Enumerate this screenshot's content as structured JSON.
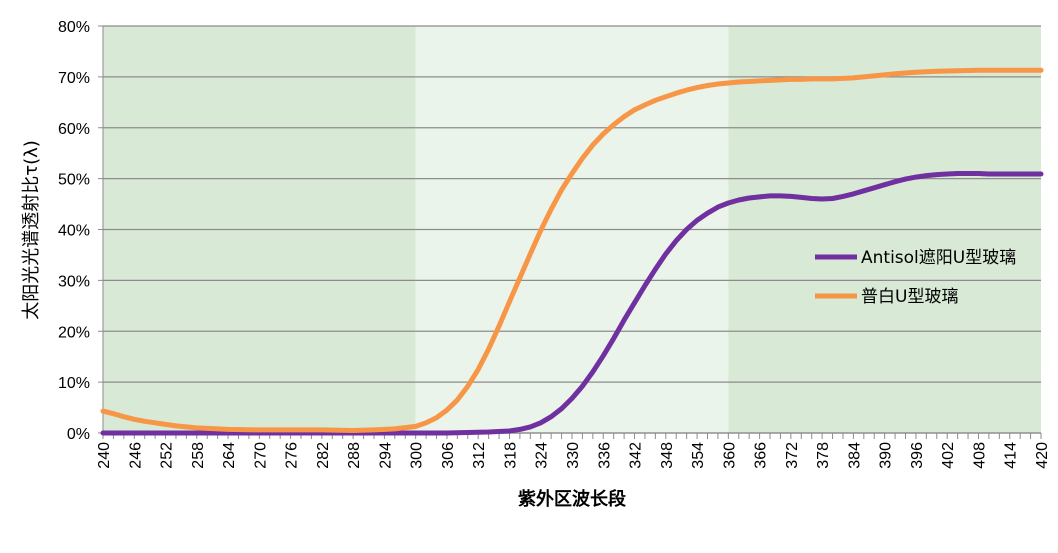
{
  "chart_data": {
    "type": "line",
    "title": "",
    "xlabel": "紫外区波长段",
    "ylabel": "太阳光光谱透射比τ(λ)",
    "xlim": [
      240,
      420
    ],
    "ylim": [
      0,
      0.8
    ],
    "x_ticks": [
      240,
      246,
      252,
      258,
      264,
      270,
      276,
      282,
      288,
      294,
      300,
      306,
      312,
      318,
      324,
      330,
      336,
      342,
      348,
      354,
      360,
      366,
      372,
      378,
      384,
      390,
      396,
      402,
      408,
      414,
      420
    ],
    "y_ticks": [
      0,
      0.1,
      0.2,
      0.3,
      0.4,
      0.5,
      0.6,
      0.7,
      0.8
    ],
    "y_tick_labels": [
      "0%",
      "10%",
      "20%",
      "30%",
      "40%",
      "50%",
      "60%",
      "70%",
      "80%"
    ],
    "grid": "horizontal",
    "legend_position": "right",
    "background_bands": [
      {
        "from": 240,
        "to": 300,
        "color": "#d8e9d6"
      },
      {
        "from": 300,
        "to": 360,
        "color": "#ebf4ea"
      },
      {
        "from": 360,
        "to": 420,
        "color": "#d8e9d6"
      }
    ],
    "series": [
      {
        "name": "Antisol遮阳U型玻璃",
        "color": "#7030a0",
        "x": [
          240,
          250,
          260,
          270,
          280,
          290,
          300,
          306,
          310,
          314,
          318,
          320,
          322,
          324,
          326,
          328,
          330,
          332,
          334,
          336,
          338,
          340,
          342,
          344,
          346,
          348,
          350,
          352,
          354,
          356,
          358,
          360,
          362,
          364,
          366,
          368,
          370,
          372,
          374,
          376,
          378,
          380,
          382,
          384,
          386,
          388,
          390,
          392,
          394,
          396,
          398,
          400,
          402,
          404,
          406,
          408,
          410,
          412,
          414,
          416,
          418,
          420
        ],
        "y": [
          0,
          0,
          0,
          0,
          0,
          0,
          0,
          0,
          0.001,
          0.002,
          0.004,
          0.007,
          0.012,
          0.02,
          0.032,
          0.048,
          0.068,
          0.092,
          0.12,
          0.152,
          0.186,
          0.222,
          0.256,
          0.29,
          0.322,
          0.352,
          0.378,
          0.4,
          0.418,
          0.432,
          0.444,
          0.452,
          0.458,
          0.462,
          0.464,
          0.466,
          0.466,
          0.465,
          0.463,
          0.461,
          0.46,
          0.461,
          0.465,
          0.47,
          0.476,
          0.482,
          0.488,
          0.494,
          0.499,
          0.503,
          0.506,
          0.508,
          0.509,
          0.51,
          0.51,
          0.51,
          0.509,
          0.509,
          0.509,
          0.509,
          0.509,
          0.509
        ]
      },
      {
        "name": "普白U型玻璃",
        "color": "#f79646",
        "x": [
          240,
          242,
          244,
          246,
          248,
          250,
          252,
          254,
          256,
          258,
          260,
          264,
          270,
          276,
          282,
          288,
          292,
          296,
          300,
          302,
          304,
          306,
          308,
          310,
          312,
          314,
          316,
          318,
          320,
          322,
          324,
          326,
          328,
          330,
          332,
          334,
          336,
          338,
          340,
          342,
          344,
          346,
          348,
          350,
          352,
          354,
          356,
          358,
          360,
          362,
          364,
          366,
          368,
          370,
          372,
          374,
          376,
          378,
          380,
          384,
          388,
          392,
          396,
          400,
          404,
          408,
          412,
          416,
          420
        ],
        "y": [
          0.043,
          0.038,
          0.032,
          0.027,
          0.023,
          0.02,
          0.017,
          0.014,
          0.012,
          0.01,
          0.009,
          0.007,
          0.006,
          0.006,
          0.006,
          0.005,
          0.006,
          0.008,
          0.013,
          0.02,
          0.03,
          0.045,
          0.065,
          0.092,
          0.125,
          0.165,
          0.21,
          0.258,
          0.305,
          0.352,
          0.398,
          0.44,
          0.478,
          0.51,
          0.54,
          0.566,
          0.588,
          0.606,
          0.622,
          0.635,
          0.645,
          0.654,
          0.661,
          0.668,
          0.674,
          0.679,
          0.683,
          0.686,
          0.688,
          0.69,
          0.691,
          0.692,
          0.693,
          0.694,
          0.695,
          0.695,
          0.696,
          0.696,
          0.696,
          0.698,
          0.702,
          0.706,
          0.709,
          0.711,
          0.712,
          0.713,
          0.713,
          0.713,
          0.713
        ]
      }
    ]
  }
}
